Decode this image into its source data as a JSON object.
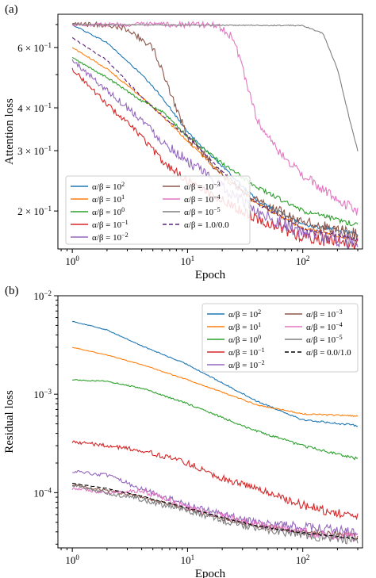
{
  "chart_data": [
    {
      "type": "line",
      "panel_label": "(a)",
      "xlabel": "Epoch",
      "ylabel": "Attention loss",
      "x_scale": "log",
      "y_scale": "log",
      "xlim": [
        0.75,
        330
      ],
      "ylim": [
        0.155,
        0.75
      ],
      "x_ticks": [
        {
          "value": 1,
          "label": "10",
          "exp": "0"
        },
        {
          "value": 10,
          "label": "10",
          "exp": "1"
        },
        {
          "value": 100,
          "label": "10",
          "exp": "2"
        }
      ],
      "y_ticks": [
        {
          "value": 0.2,
          "label": "2 × 10",
          "exp": "−1"
        },
        {
          "value": 0.3,
          "label": "3 × 10",
          "exp": "−1"
        },
        {
          "value": 0.4,
          "label": "4 × 10",
          "exp": "−1"
        },
        {
          "value": 0.6,
          "label": "6 × 10",
          "exp": "−1"
        }
      ],
      "legend": {
        "position": "lower-left",
        "columns": 2
      },
      "series": [
        {
          "name": "α/β = 10",
          "exp": "2",
          "color": "#1f77b4",
          "dash": "",
          "noise": 0.006,
          "points": [
            [
              1,
              0.7
            ],
            [
              2,
              0.62
            ],
            [
              4,
              0.5
            ],
            [
              6,
              0.43
            ],
            [
              10,
              0.34
            ],
            [
              20,
              0.27
            ],
            [
              40,
              0.215
            ],
            [
              100,
              0.183
            ],
            [
              300,
              0.172
            ]
          ]
        },
        {
          "name": "α/β = 10",
          "exp": "1",
          "color": "#ff7f0e",
          "dash": "",
          "noise": 0.006,
          "points": [
            [
              1,
              0.6
            ],
            [
              2,
              0.52
            ],
            [
              4,
              0.43
            ],
            [
              6,
              0.38
            ],
            [
              10,
              0.32
            ],
            [
              20,
              0.255
            ],
            [
              40,
              0.21
            ],
            [
              100,
              0.178
            ],
            [
              300,
              0.165
            ]
          ]
        },
        {
          "name": "α/β = 10",
          "exp": "0",
          "color": "#2ca02c",
          "dash": "",
          "noise": 0.008,
          "points": [
            [
              1,
              0.56
            ],
            [
              2,
              0.49
            ],
            [
              4,
              0.42
            ],
            [
              6,
              0.39
            ],
            [
              10,
              0.33
            ],
            [
              20,
              0.275
            ],
            [
              40,
              0.235
            ],
            [
              100,
              0.2
            ],
            [
              300,
              0.182
            ]
          ]
        },
        {
          "name": "α/β = 10",
          "exp": "−1",
          "color": "#d62728",
          "dash": "",
          "noise": 0.02,
          "points": [
            [
              1,
              0.52
            ],
            [
              2,
              0.41
            ],
            [
              4,
              0.33
            ],
            [
              6,
              0.28
            ],
            [
              10,
              0.245
            ],
            [
              20,
              0.215
            ],
            [
              40,
              0.19
            ],
            [
              100,
              0.168
            ],
            [
              300,
              0.16
            ]
          ]
        },
        {
          "name": "α/β = 10",
          "exp": "−2",
          "color": "#9467bd",
          "dash": "",
          "noise": 0.025,
          "points": [
            [
              1,
              0.55
            ],
            [
              2,
              0.45
            ],
            [
              4,
              0.37
            ],
            [
              6,
              0.32
            ],
            [
              10,
              0.28
            ],
            [
              20,
              0.235
            ],
            [
              40,
              0.2
            ],
            [
              100,
              0.172
            ],
            [
              300,
              0.162
            ]
          ]
        },
        {
          "name": "α/β = 10",
          "exp": "−3",
          "color": "#8c564b",
          "dash": "",
          "noise": 0.02,
          "points": [
            [
              1,
              0.7
            ],
            [
              2,
              0.7
            ],
            [
              3,
              0.68
            ],
            [
              5,
              0.6
            ],
            [
              7,
              0.45
            ],
            [
              10,
              0.33
            ],
            [
              20,
              0.255
            ],
            [
              40,
              0.215
            ],
            [
              100,
              0.185
            ],
            [
              300,
              0.17
            ]
          ]
        },
        {
          "name": "α/β = 10",
          "exp": "−4",
          "color": "#e377c2",
          "dash": "",
          "noise": 0.015,
          "points": [
            [
              1,
              0.7
            ],
            [
              10,
              0.7
            ],
            [
              17,
              0.7
            ],
            [
              20,
              0.68
            ],
            [
              25,
              0.64
            ],
            [
              30,
              0.52
            ],
            [
              40,
              0.37
            ],
            [
              60,
              0.3
            ],
            [
              100,
              0.255
            ],
            [
              200,
              0.215
            ],
            [
              300,
              0.2
            ]
          ]
        },
        {
          "name": "α/β = 10",
          "exp": "−5",
          "color": "#7f7f7f",
          "dash": "",
          "noise": 0.002,
          "points": [
            [
              1,
              0.7
            ],
            [
              100,
              0.695
            ],
            [
              150,
              0.66
            ],
            [
              200,
              0.52
            ],
            [
              250,
              0.38
            ],
            [
              300,
              0.3
            ]
          ]
        },
        {
          "name": "α/β = 1.0/0.0",
          "exp": "",
          "color": "#5b1f7a",
          "dash": "5,3",
          "noise": 0.005,
          "points": [
            [
              1,
              0.64
            ],
            [
              2,
              0.55
            ],
            [
              4,
              0.43
            ],
            [
              6,
              0.38
            ],
            [
              10,
              0.33
            ],
            [
              20,
              0.26
            ],
            [
              40,
              0.21
            ],
            [
              100,
              0.178
            ],
            [
              300,
              0.165
            ]
          ]
        }
      ]
    },
    {
      "type": "line",
      "panel_label": "(b)",
      "xlabel": "Epoch",
      "ylabel": "Residual loss",
      "x_scale": "log",
      "y_scale": "log",
      "xlim": [
        0.75,
        330
      ],
      "ylim": [
        2.75e-05,
        0.01
      ],
      "x_ticks": [
        {
          "value": 1,
          "label": "10",
          "exp": "0"
        },
        {
          "value": 10,
          "label": "10",
          "exp": "1"
        },
        {
          "value": 100,
          "label": "10",
          "exp": "2"
        }
      ],
      "y_ticks": [
        {
          "value": 0.0001,
          "label": "10",
          "exp": "−4"
        },
        {
          "value": 0.001,
          "label": "10",
          "exp": "−3"
        },
        {
          "value": 0.01,
          "label": "10",
          "exp": "−2"
        }
      ],
      "legend": {
        "position": "upper-right",
        "columns": 2
      },
      "series": [
        {
          "name": "α/β = 10",
          "exp": "2",
          "color": "#1f77b4",
          "dash": "",
          "noise": 0.01,
          "points": [
            [
              1,
              0.0055
            ],
            [
              2,
              0.0045
            ],
            [
              4,
              0.0031
            ],
            [
              10,
              0.002
            ],
            [
              20,
              0.0013
            ],
            [
              40,
              0.00085
            ],
            [
              100,
              0.00055
            ],
            [
              300,
              0.00048
            ]
          ]
        },
        {
          "name": "α/β = 10",
          "exp": "1",
          "color": "#ff7f0e",
          "dash": "",
          "noise": 0.008,
          "points": [
            [
              1,
              0.003
            ],
            [
              2,
              0.0025
            ],
            [
              4,
              0.002
            ],
            [
              10,
              0.0014
            ],
            [
              20,
              0.00105
            ],
            [
              40,
              0.00078
            ],
            [
              100,
              0.00063
            ],
            [
              300,
              0.0006
            ]
          ]
        },
        {
          "name": "α/β = 10",
          "exp": "0",
          "color": "#2ca02c",
          "dash": "",
          "noise": 0.015,
          "points": [
            [
              1,
              0.0014
            ],
            [
              2,
              0.00135
            ],
            [
              4,
              0.00115
            ],
            [
              10,
              0.0008
            ],
            [
              20,
              0.00058
            ],
            [
              40,
              0.00042
            ],
            [
              100,
              0.0003
            ],
            [
              300,
              0.00022
            ]
          ]
        },
        {
          "name": "α/β = 10",
          "exp": "−1",
          "color": "#d62728",
          "dash": "",
          "noise": 0.05,
          "points": [
            [
              1,
              0.00033
            ],
            [
              2,
              0.0003
            ],
            [
              4,
              0.00027
            ],
            [
              10,
              0.0002
            ],
            [
              20,
              0.00014
            ],
            [
              40,
              0.00011
            ],
            [
              100,
              7.5e-05
            ],
            [
              300,
              5.5e-05
            ]
          ]
        },
        {
          "name": "α/β = 10",
          "exp": "−2",
          "color": "#9467bd",
          "dash": "",
          "noise": 0.05,
          "points": [
            [
              1,
              0.000165
            ],
            [
              2,
              0.00015
            ],
            [
              4,
              0.00011
            ],
            [
              10,
              7.5e-05
            ],
            [
              20,
              6e-05
            ],
            [
              40,
              5e-05
            ],
            [
              100,
              4.5e-05
            ],
            [
              300,
              4e-05
            ]
          ]
        },
        {
          "name": "α/β = 10",
          "exp": "−3",
          "color": "#8c564b",
          "dash": "",
          "noise": 0.03,
          "points": [
            [
              1,
              0.00012
            ],
            [
              2,
              0.000105
            ],
            [
              4,
              9e-05
            ],
            [
              10,
              6.8e-05
            ],
            [
              20,
              5.5e-05
            ],
            [
              40,
              4.6e-05
            ],
            [
              100,
              4e-05
            ],
            [
              300,
              3.6e-05
            ]
          ]
        },
        {
          "name": "α/β = 10",
          "exp": "−4",
          "color": "#e377c2",
          "dash": "",
          "noise": 0.05,
          "points": [
            [
              1,
              0.00011
            ],
            [
              2,
              0.0001
            ],
            [
              4,
              0.000105
            ],
            [
              10,
              7e-05
            ],
            [
              20,
              5.8e-05
            ],
            [
              40,
              4.8e-05
            ],
            [
              100,
              4e-05
            ],
            [
              300,
              3.5e-05
            ]
          ]
        },
        {
          "name": "α/β = 10",
          "exp": "−5",
          "color": "#7f7f7f",
          "dash": "",
          "noise": 0.05,
          "points": [
            [
              1,
              0.00012
            ],
            [
              2,
              0.0001
            ],
            [
              4,
              8.5e-05
            ],
            [
              10,
              6.5e-05
            ],
            [
              20,
              5.2e-05
            ],
            [
              40,
              4.4e-05
            ],
            [
              100,
              3.7e-05
            ],
            [
              300,
              3.3e-05
            ]
          ]
        },
        {
          "name": "α/β = 0.0/1.0",
          "exp": "",
          "color": "#000000",
          "dash": "5,3",
          "noise": 0.01,
          "points": [
            [
              1,
              0.000125
            ],
            [
              2,
              0.00011
            ],
            [
              4,
              9.2e-05
            ],
            [
              10,
              7e-05
            ],
            [
              20,
              5.6e-05
            ],
            [
              40,
              4.6e-05
            ],
            [
              100,
              3.9e-05
            ],
            [
              300,
              3.4e-05
            ]
          ]
        }
      ]
    }
  ]
}
